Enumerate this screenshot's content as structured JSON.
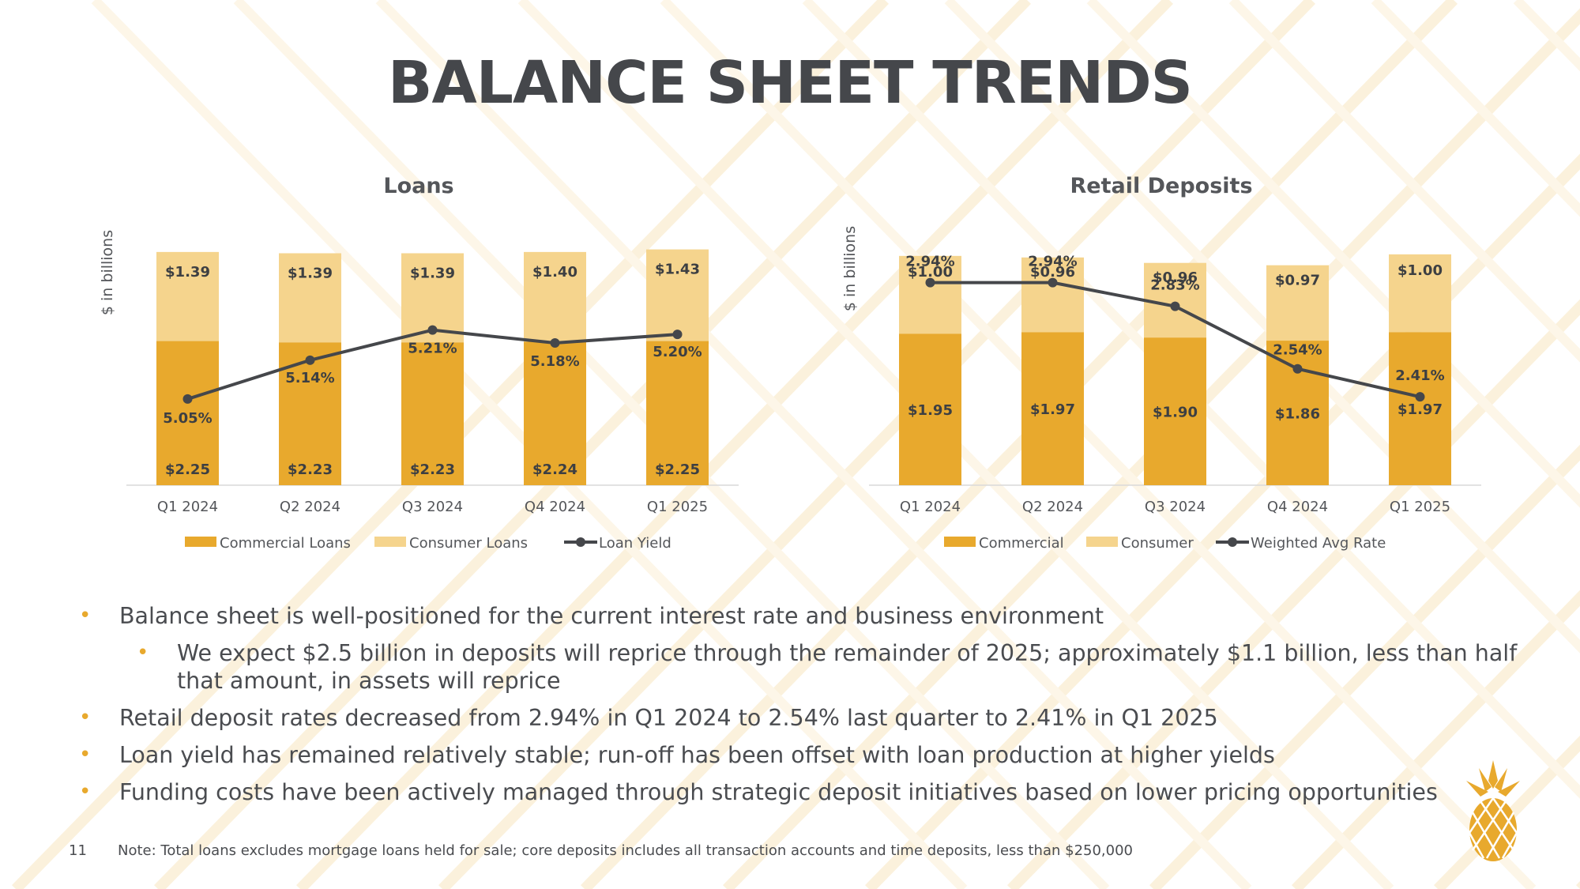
{
  "slide": {
    "title": "BALANCE SHEET TRENDS",
    "page_number": "11",
    "footnote": "Note: Total loans excludes mortgage loans held for sale; core deposits includes all transaction accounts and time deposits, less than $250,000"
  },
  "colors": {
    "commercial": "#e8a92d",
    "consumer": "#f5d48d",
    "line": "#45474b",
    "title": "#45474b",
    "text": "#54565a",
    "bullet": "#e8a92d"
  },
  "bullets": [
    {
      "text": "Balance sheet is well-positioned for the current interest rate and business environment",
      "level": 1
    },
    {
      "text": "We expect $2.5 billion in deposits will reprice through the remainder of 2025; approximately $1.1 billion, less than half that amount, in assets will reprice",
      "level": 2
    },
    {
      "text": "Retail deposit rates decreased from 2.94% in Q1 2024 to 2.54% last quarter to 2.41% in Q1 2025",
      "level": 1
    },
    {
      "text": "Loan yield has remained relatively stable; run-off has been offset with loan production at higher yields",
      "level": 1
    },
    {
      "text": "Funding costs have been actively managed through strategic deposit initiatives based on lower pricing opportunities",
      "level": 1
    }
  ],
  "chart_data": [
    {
      "type": "bar",
      "stacked": true,
      "title": "Loans",
      "ylabel": "$ in billions",
      "categories": [
        "Q1 2024",
        "Q2 2024",
        "Q3 2024",
        "Q4 2024",
        "Q1 2025"
      ],
      "series": [
        {
          "name": "Commercial Loans",
          "values": [
            2.25,
            2.23,
            2.23,
            2.24,
            2.25
          ],
          "labels": [
            "$2.25",
            "$2.23",
            "$2.23",
            "$2.24",
            "$2.25"
          ]
        },
        {
          "name": "Consumer Loans",
          "values": [
            1.39,
            1.39,
            1.39,
            1.4,
            1.43
          ],
          "labels": [
            "$1.39",
            "$1.39",
            "$1.39",
            "$1.40",
            "$1.43"
          ]
        }
      ],
      "line": {
        "name": "Loan Yield",
        "values": [
          5.05,
          5.14,
          5.21,
          5.18,
          5.2
        ],
        "labels": [
          "5.05%",
          "5.14%",
          "5.21%",
          "5.18%",
          "5.20%"
        ],
        "range": [
          4.85,
          5.4
        ]
      },
      "ylim": [
        0,
        3.7
      ],
      "legend": "bottom"
    },
    {
      "type": "bar",
      "stacked": true,
      "title": "Retail Deposits",
      "ylabel": "$ in billions",
      "categories": [
        "Q1 2024",
        "Q2 2024",
        "Q3 2024",
        "Q4 2024",
        "Q1 2025"
      ],
      "series": [
        {
          "name": "Commercial",
          "values": [
            1.95,
            1.97,
            1.9,
            1.86,
            1.97
          ],
          "labels": [
            "$1.95",
            "$1.97",
            "$1.90",
            "$1.86",
            "$1.97"
          ]
        },
        {
          "name": "Consumer",
          "values": [
            1.0,
            0.96,
            0.96,
            0.97,
            1.0
          ],
          "labels": [
            "$1.00",
            "$0.96",
            "$0.96",
            "$0.97",
            "$1.00"
          ]
        }
      ],
      "line": {
        "name": "Weighted Avg Rate",
        "values": [
          2.94,
          2.94,
          2.83,
          2.54,
          2.41
        ],
        "labels": [
          "2.94%",
          "2.94%",
          "2.83%",
          "2.54%",
          "2.41%"
        ],
        "range": [
          2.0,
          3.1
        ]
      },
      "ylim": [
        0,
        3.05
      ],
      "legend": "bottom"
    }
  ]
}
